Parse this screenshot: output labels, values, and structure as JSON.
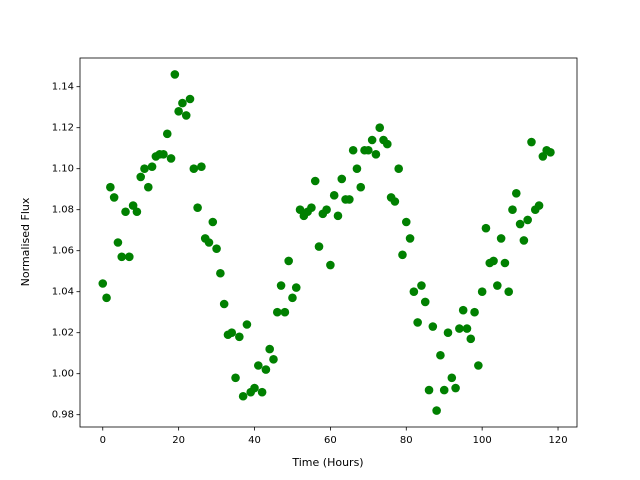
{
  "chart_data": {
    "type": "scatter",
    "xlabel": "Time (Hours)",
    "ylabel": "Normalised Flux",
    "color": "#008000",
    "x": [
      0,
      1,
      2,
      3,
      4,
      5,
      6,
      7,
      8,
      9,
      10,
      11,
      12,
      13,
      14,
      15,
      16,
      17,
      18,
      19,
      20,
      21,
      22,
      23,
      24,
      25,
      26,
      27,
      28,
      29,
      30,
      31,
      32,
      33,
      34,
      35,
      36,
      37,
      38,
      39,
      40,
      41,
      42,
      43,
      44,
      45,
      46,
      47,
      48,
      49,
      50,
      51,
      52,
      53,
      54,
      55,
      56,
      57,
      58,
      59,
      60,
      61,
      62,
      63,
      64,
      65,
      66,
      67,
      68,
      69,
      70,
      71,
      72,
      73,
      74,
      75,
      76,
      77,
      78,
      79,
      80,
      81,
      82,
      83,
      84,
      85,
      86,
      87,
      88,
      89,
      90,
      91,
      92,
      93,
      94,
      95,
      96,
      97,
      98,
      99,
      100,
      101,
      102,
      103,
      104,
      105,
      106,
      107,
      108,
      109,
      110,
      111,
      112,
      113,
      114,
      115,
      116,
      117,
      118
    ],
    "values": [
      1.044,
      1.037,
      1.091,
      1.086,
      1.064,
      1.057,
      1.079,
      1.057,
      1.082,
      1.079,
      1.096,
      1.1,
      1.091,
      1.101,
      1.106,
      1.107,
      1.107,
      1.117,
      1.105,
      1.146,
      1.128,
      1.132,
      1.126,
      1.134,
      1.1,
      1.081,
      1.101,
      1.066,
      1.064,
      1.074,
      1.061,
      1.049,
      1.034,
      1.019,
      1.02,
      0.998,
      1.018,
      0.989,
      1.024,
      0.991,
      0.993,
      1.004,
      0.991,
      1.002,
      1.012,
      1.007,
      1.03,
      1.043,
      1.03,
      1.055,
      1.037,
      1.042,
      1.08,
      1.077,
      1.079,
      1.081,
      1.094,
      1.062,
      1.078,
      1.08,
      1.053,
      1.087,
      1.077,
      1.095,
      1.085,
      1.085,
      1.109,
      1.1,
      1.091,
      1.109,
      1.109,
      1.114,
      1.107,
      1.12,
      1.114,
      1.112,
      1.086,
      1.084,
      1.1,
      1.058,
      1.074,
      1.066,
      1.04,
      1.025,
      1.043,
      1.035,
      0.992,
      1.023,
      0.982,
      1.009,
      0.992,
      1.02,
      0.998,
      0.993,
      1.022,
      1.031,
      1.022,
      1.017,
      1.03,
      1.004,
      1.04,
      1.071,
      1.054,
      1.055,
      1.043,
      1.066,
      1.054,
      1.04,
      1.08,
      1.088,
      1.073,
      1.065,
      1.075,
      1.113,
      1.08,
      1.082,
      1.106,
      1.109,
      1.108
    ],
    "xlim": [
      -6,
      125
    ],
    "ylim": [
      0.974,
      1.154
    ],
    "xticks": [
      0,
      20,
      40,
      60,
      80,
      100,
      120
    ],
    "yticks": [
      0.98,
      {
        "value": 1.0,
        "label": "1.00"
      },
      1.02,
      1.04,
      1.06,
      1.08,
      {
        "value": 1.1,
        "label": "1.10"
      },
      1.12,
      1.14
    ]
  }
}
